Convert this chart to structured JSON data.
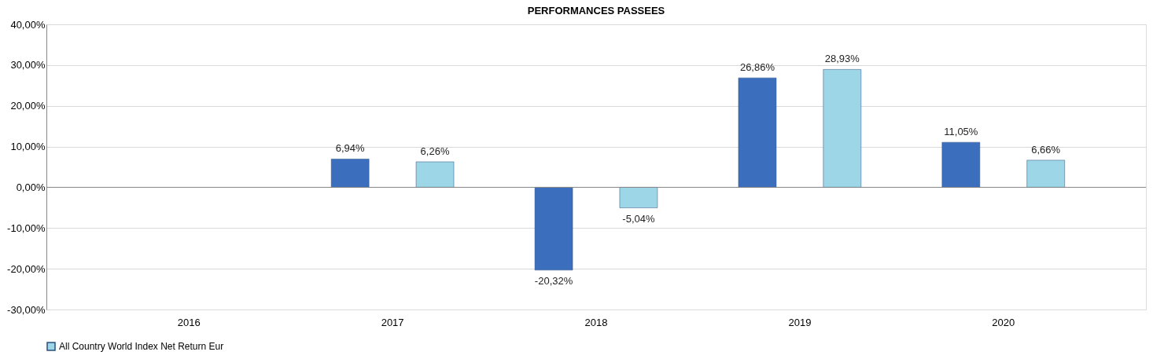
{
  "chart_data": {
    "type": "bar",
    "title": "PERFORMANCES PASSEES",
    "categories": [
      "2016",
      "2017",
      "2018",
      "2019",
      "2020"
    ],
    "series": [
      {
        "color": "#3b6fbe",
        "values": [
          null,
          6.94,
          -20.32,
          26.86,
          11.05
        ],
        "value_labels": [
          null,
          "6,94%",
          "-20,32%",
          "26,86%",
          "11,05%"
        ]
      },
      {
        "name": "All Country World Index Net Return Eur",
        "color": "#9dd6e6",
        "values": [
          null,
          6.26,
          -5.04,
          28.93,
          6.66
        ],
        "value_labels": [
          null,
          "6,26%",
          "-5,04%",
          "28,93%",
          "6,66%"
        ]
      }
    ],
    "ylim": [
      -30,
      40
    ],
    "yticks": [
      {
        "value": -30,
        "label": "-30,00%"
      },
      {
        "value": -20,
        "label": "-20,00%"
      },
      {
        "value": -10,
        "label": "-10,00%"
      },
      {
        "value": 0,
        "label": "0,00%"
      },
      {
        "value": 10,
        "label": "10,00%"
      },
      {
        "value": 20,
        "label": "20,00%"
      },
      {
        "value": 30,
        "label": "30,00%"
      },
      {
        "value": 40,
        "label": "40,00%"
      }
    ],
    "grid": "y",
    "legend": "bottom"
  }
}
